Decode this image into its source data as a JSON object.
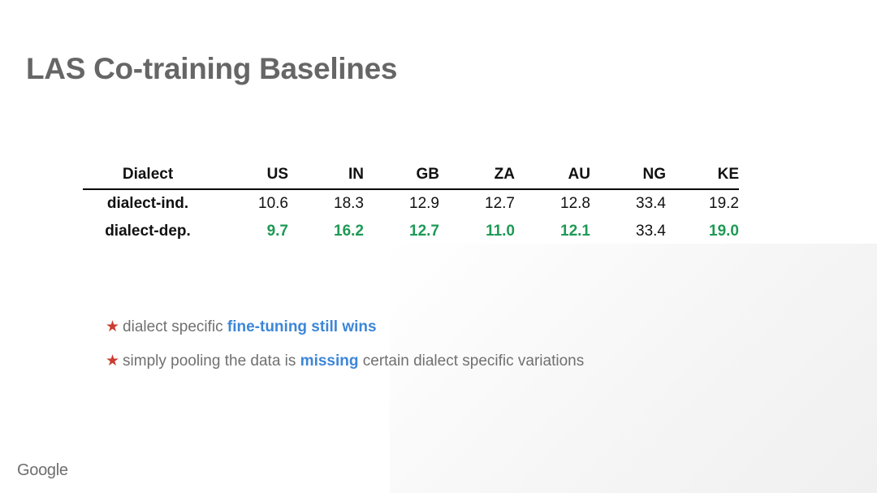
{
  "title": "LAS Co-training Baselines",
  "table": {
    "header": [
      "Dialect",
      "US",
      "IN",
      "GB",
      "ZA",
      "AU",
      "NG",
      "KE"
    ],
    "rows": [
      {
        "label": "dialect-ind.",
        "values": [
          "10.6",
          "18.3",
          "12.9",
          "12.7",
          "12.8",
          "33.4",
          "19.2"
        ],
        "highlight": [
          false,
          false,
          false,
          false,
          false,
          false,
          false
        ]
      },
      {
        "label": "dialect-dep.",
        "values": [
          "9.7",
          "16.2",
          "12.7",
          "11.0",
          "12.1",
          "33.4",
          "19.0"
        ],
        "highlight": [
          true,
          true,
          true,
          true,
          true,
          false,
          true
        ]
      }
    ]
  },
  "bullets": [
    {
      "pre": "dialect specific ",
      "bold": "fine-tuning still wins",
      "post": ""
    },
    {
      "pre": "simply pooling the data is ",
      "bold": "missing",
      "post": " certain dialect specific variations"
    }
  ],
  "bullet_icon": "star-icon",
  "colors": {
    "title": "#666666",
    "highlight_green": "#1e9a55",
    "highlight_blue": "#3d86d8",
    "star": "#cc3b30"
  },
  "footer": {
    "logo_text": "Google"
  }
}
